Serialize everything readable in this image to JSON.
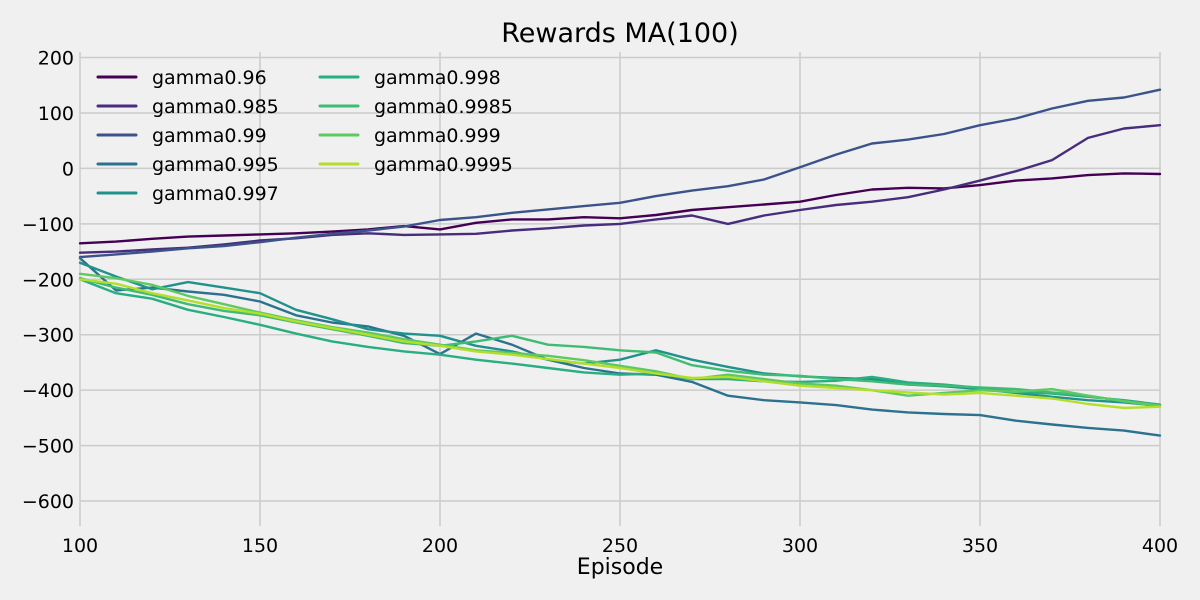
{
  "chart_data": {
    "type": "line",
    "title": "Rewards MA(100)",
    "xlabel": "Episode",
    "ylabel": "",
    "xlim": [
      100,
      400
    ],
    "ylim": [
      -645,
      210
    ],
    "xticks": [
      100,
      150,
      200,
      250,
      300,
      350,
      400
    ],
    "yticks": [
      200,
      100,
      0,
      -100,
      -200,
      -300,
      -400,
      -500,
      -600
    ],
    "xtick_labels": [
      "100",
      "150",
      "200",
      "250",
      "300",
      "350",
      "400"
    ],
    "ytick_labels": [
      "200",
      "100",
      "0",
      "−100",
      "−200",
      "−300",
      "−400",
      "−500",
      "−600"
    ],
    "grid": true,
    "legend_position": "top-left",
    "legend_columns": 2,
    "background": "#f0f0f0",
    "series": [
      {
        "name": "gamma0.96",
        "color": "#440154",
        "x": [
          100,
          110,
          120,
          130,
          140,
          150,
          160,
          170,
          180,
          190,
          200,
          210,
          220,
          230,
          240,
          250,
          260,
          270,
          280,
          290,
          300,
          310,
          320,
          330,
          340,
          350,
          360,
          370,
          380,
          390,
          400
        ],
        "y": [
          -135,
          -132,
          -127,
          -123,
          -121,
          -119,
          -117,
          -114,
          -110,
          -104,
          -110,
          -98,
          -92,
          -92,
          -88,
          -90,
          -84,
          -75,
          -70,
          -65,
          -60,
          -48,
          -38,
          -35,
          -36,
          -30,
          -22,
          -18,
          -12,
          -9,
          -10
        ]
      },
      {
        "name": "gamma0.985",
        "color": "#472d7b",
        "x": [
          100,
          110,
          120,
          130,
          140,
          150,
          160,
          170,
          180,
          190,
          200,
          210,
          220,
          230,
          240,
          250,
          260,
          270,
          280,
          290,
          300,
          310,
          320,
          330,
          340,
          350,
          360,
          370,
          380,
          390,
          400
        ],
        "y": [
          -152,
          -150,
          -146,
          -143,
          -137,
          -130,
          -126,
          -120,
          -117,
          -120,
          -119,
          -118,
          -112,
          -108,
          -103,
          -100,
          -92,
          -85,
          -100,
          -85,
          -75,
          -66,
          -60,
          -52,
          -38,
          -22,
          -5,
          15,
          55,
          72,
          78
        ]
      },
      {
        "name": "gamma0.99",
        "color": "#3b528b",
        "x": [
          100,
          110,
          120,
          130,
          140,
          150,
          160,
          170,
          180,
          190,
          200,
          210,
          220,
          230,
          240,
          250,
          260,
          270,
          280,
          290,
          300,
          310,
          320,
          330,
          340,
          350,
          360,
          370,
          380,
          390,
          400
        ],
        "y": [
          -160,
          -155,
          -150,
          -144,
          -140,
          -133,
          -125,
          -118,
          -112,
          -105,
          -93,
          -88,
          -80,
          -74,
          -68,
          -62,
          -50,
          -40,
          -32,
          -20,
          2,
          25,
          45,
          52,
          62,
          78,
          90,
          108,
          122,
          128,
          142
        ]
      },
      {
        "name": "gamma0.995",
        "color": "#2c728e",
        "x": [
          100,
          110,
          120,
          130,
          140,
          150,
          160,
          170,
          180,
          190,
          200,
          210,
          220,
          230,
          240,
          250,
          260,
          270,
          280,
          290,
          300,
          310,
          320,
          330,
          340,
          350,
          360,
          370,
          380,
          390,
          400
        ],
        "y": [
          -162,
          -220,
          -215,
          -222,
          -228,
          -240,
          -265,
          -278,
          -285,
          -302,
          -335,
          -298,
          -318,
          -345,
          -360,
          -370,
          -372,
          -385,
          -410,
          -418,
          -422,
          -427,
          -435,
          -440,
          -443,
          -445,
          -455,
          -462,
          -468,
          -473,
          -482
        ]
      },
      {
        "name": "gamma0.997",
        "color": "#21918c",
        "x": [
          100,
          110,
          120,
          130,
          140,
          150,
          160,
          170,
          180,
          190,
          200,
          210,
          220,
          230,
          240,
          250,
          260,
          270,
          280,
          290,
          300,
          310,
          320,
          330,
          340,
          350,
          360,
          370,
          380,
          390,
          400
        ],
        "y": [
          -170,
          -195,
          -218,
          -205,
          -215,
          -225,
          -255,
          -272,
          -290,
          -298,
          -302,
          -320,
          -330,
          -345,
          -352,
          -345,
          -328,
          -345,
          -358,
          -370,
          -375,
          -378,
          -380,
          -390,
          -393,
          -398,
          -405,
          -412,
          -418,
          -422,
          -428
        ]
      },
      {
        "name": "gamma0.998",
        "color": "#28ae80",
        "x": [
          100,
          110,
          120,
          130,
          140,
          150,
          160,
          170,
          180,
          190,
          200,
          210,
          220,
          230,
          240,
          250,
          260,
          270,
          280,
          290,
          300,
          310,
          320,
          330,
          340,
          350,
          360,
          370,
          380,
          390,
          400
        ],
        "y": [
          -200,
          -225,
          -235,
          -255,
          -268,
          -282,
          -298,
          -312,
          -322,
          -330,
          -336,
          -345,
          -352,
          -360,
          -368,
          -372,
          -370,
          -380,
          -380,
          -384,
          -385,
          -383,
          -376,
          -386,
          -390,
          -396,
          -403,
          -406,
          -412,
          -418,
          -426
        ]
      },
      {
        "name": "gamma0.9985",
        "color": "#3fbc73",
        "x": [
          100,
          110,
          120,
          130,
          140,
          150,
          160,
          170,
          180,
          190,
          200,
          210,
          220,
          230,
          240,
          250,
          260,
          270,
          280,
          290,
          300,
          310,
          320,
          330,
          340,
          350,
          360,
          370,
          380,
          390,
          400
        ],
        "y": [
          -198,
          -215,
          -228,
          -245,
          -257,
          -265,
          -278,
          -290,
          -302,
          -315,
          -320,
          -312,
          -302,
          -318,
          -322,
          -328,
          -332,
          -355,
          -365,
          -372,
          -374,
          -380,
          -384,
          -390,
          -392,
          -395,
          -398,
          -404,
          -410,
          -420,
          -430
        ]
      },
      {
        "name": "gamma0.999",
        "color": "#5ec962",
        "x": [
          100,
          110,
          120,
          130,
          140,
          150,
          160,
          170,
          180,
          190,
          200,
          210,
          220,
          230,
          240,
          250,
          260,
          270,
          280,
          290,
          300,
          310,
          320,
          330,
          340,
          350,
          360,
          370,
          380,
          390,
          400
        ],
        "y": [
          -190,
          -198,
          -210,
          -230,
          -245,
          -260,
          -274,
          -286,
          -296,
          -308,
          -318,
          -328,
          -333,
          -338,
          -346,
          -356,
          -366,
          -380,
          -372,
          -380,
          -388,
          -392,
          -400,
          -410,
          -405,
          -400,
          -403,
          -398,
          -410,
          -420,
          -428
        ]
      },
      {
        "name": "gamma0.9995",
        "color": "#b5de2b",
        "x": [
          100,
          110,
          120,
          130,
          140,
          150,
          160,
          170,
          180,
          190,
          200,
          210,
          220,
          230,
          240,
          250,
          260,
          270,
          280,
          290,
          300,
          310,
          320,
          330,
          340,
          350,
          360,
          370,
          380,
          390,
          400
        ],
        "y": [
          -200,
          -208,
          -225,
          -238,
          -252,
          -262,
          -276,
          -288,
          -300,
          -312,
          -320,
          -330,
          -336,
          -344,
          -352,
          -360,
          -370,
          -378,
          -376,
          -384,
          -392,
          -396,
          -400,
          -404,
          -408,
          -405,
          -410,
          -415,
          -425,
          -432,
          -430
        ]
      }
    ]
  }
}
